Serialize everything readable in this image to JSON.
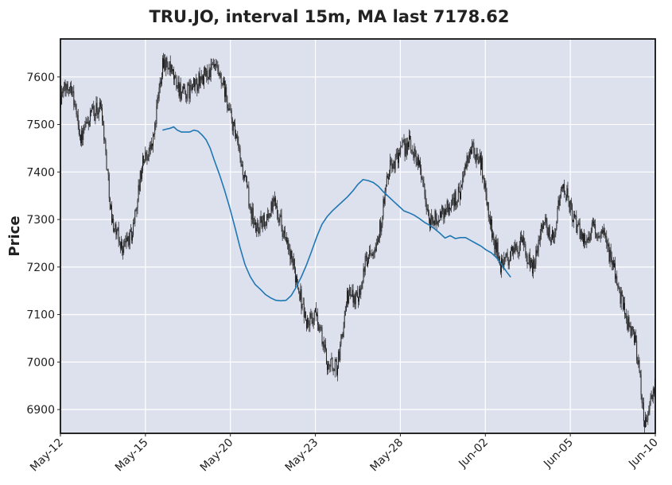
{
  "chart_data": {
    "type": "candlestick",
    "title": "TRU.JO, interval 15m, MA last 7178.62",
    "xlabel": "",
    "ylabel": "Price",
    "ylim": [
      6850,
      7680
    ],
    "grid": true,
    "y_ticks": [
      6900,
      7000,
      7100,
      7200,
      7300,
      7400,
      7500,
      7600
    ],
    "x_tick_labels": [
      "May-12",
      "May-15",
      "May-20",
      "May-23",
      "May-28",
      "Jun-02",
      "Jun-05",
      "Jun-10"
    ],
    "price_path": [
      [
        0,
        7560
      ],
      [
        1,
        7590
      ],
      [
        2,
        7470
      ],
      [
        3,
        7520
      ],
      [
        4,
        7540
      ],
      [
        5,
        7300
      ],
      [
        6,
        7240
      ],
      [
        7,
        7270
      ],
      [
        8,
        7420
      ],
      [
        9,
        7460
      ],
      [
        10,
        7640
      ],
      [
        11,
        7600
      ],
      [
        12,
        7560
      ],
      [
        13,
        7580
      ],
      [
        14,
        7600
      ],
      [
        15,
        7620
      ],
      [
        16,
        7570
      ],
      [
        17,
        7480
      ],
      [
        18,
        7380
      ],
      [
        19,
        7280
      ],
      [
        20,
        7300
      ],
      [
        21,
        7340
      ],
      [
        22,
        7250
      ],
      [
        23,
        7180
      ],
      [
        24,
        7080
      ],
      [
        25,
        7100
      ],
      [
        26,
        7000
      ],
      [
        27,
        6990
      ],
      [
        28,
        7140
      ],
      [
        29,
        7140
      ],
      [
        30,
        7230
      ],
      [
        31,
        7260
      ],
      [
        32,
        7400
      ],
      [
        33,
        7440
      ],
      [
        34,
        7460
      ],
      [
        35,
        7420
      ],
      [
        36,
        7290
      ],
      [
        37,
        7310
      ],
      [
        38,
        7330
      ],
      [
        39,
        7360
      ],
      [
        40,
        7450
      ],
      [
        41,
        7420
      ],
      [
        42,
        7280
      ],
      [
        43,
        7200
      ],
      [
        44,
        7230
      ],
      [
        45,
        7250
      ],
      [
        46,
        7190
      ],
      [
        47,
        7300
      ],
      [
        48,
        7260
      ],
      [
        49,
        7380
      ],
      [
        50,
        7300
      ],
      [
        51,
        7260
      ],
      [
        52,
        7280
      ],
      [
        53,
        7260
      ],
      [
        54,
        7200
      ],
      [
        55,
        7100
      ],
      [
        56,
        7050
      ],
      [
        57,
        6870
      ],
      [
        58,
        6950
      ]
    ],
    "ma_series": {
      "values": [
        [
          9.96,
          7488
        ],
        [
          10.3,
          7490
        ],
        [
          10.7,
          7492
        ],
        [
          11.04,
          7495
        ],
        [
          11.4,
          7488
        ],
        [
          11.8,
          7484
        ],
        [
          12.2,
          7484
        ],
        [
          12.6,
          7484
        ],
        [
          13.0,
          7488
        ],
        [
          13.4,
          7486
        ],
        [
          13.8,
          7478
        ],
        [
          14.2,
          7468
        ],
        [
          14.6,
          7450
        ],
        [
          15.0,
          7425
        ],
        [
          15.5,
          7395
        ],
        [
          16.0,
          7362
        ],
        [
          16.5,
          7325
        ],
        [
          17.0,
          7285
        ],
        [
          17.5,
          7242
        ],
        [
          18.0,
          7205
        ],
        [
          18.5,
          7180
        ],
        [
          19.0,
          7163
        ],
        [
          19.5,
          7153
        ],
        [
          20.0,
          7142
        ],
        [
          20.5,
          7135
        ],
        [
          21.0,
          7130
        ],
        [
          21.5,
          7129
        ],
        [
          22.0,
          7130
        ],
        [
          22.5,
          7140
        ],
        [
          23.0,
          7158
        ],
        [
          23.5,
          7180
        ],
        [
          24.0,
          7205
        ],
        [
          24.5,
          7234
        ],
        [
          25.0,
          7264
        ],
        [
          25.5,
          7290
        ],
        [
          26.0,
          7306
        ],
        [
          26.5,
          7318
        ],
        [
          27.0,
          7328
        ],
        [
          27.5,
          7338
        ],
        [
          28.0,
          7348
        ],
        [
          28.5,
          7360
        ],
        [
          29.0,
          7374
        ],
        [
          29.5,
          7384
        ],
        [
          30.0,
          7382
        ],
        [
          30.5,
          7378
        ],
        [
          31.0,
          7370
        ],
        [
          31.5,
          7358
        ],
        [
          32.0,
          7348
        ],
        [
          32.5,
          7338
        ],
        [
          33.0,
          7328
        ],
        [
          33.5,
          7318
        ],
        [
          34.0,
          7314
        ],
        [
          34.5,
          7309
        ],
        [
          35.0,
          7302
        ],
        [
          35.5,
          7294
        ],
        [
          36.0,
          7288
        ],
        [
          36.5,
          7280
        ],
        [
          37.0,
          7271
        ],
        [
          37.5,
          7261
        ],
        [
          38.0,
          7266
        ],
        [
          38.5,
          7260
        ],
        [
          39.0,
          7262
        ],
        [
          39.5,
          7262
        ],
        [
          40.0,
          7256
        ],
        [
          40.5,
          7250
        ],
        [
          41.0,
          7244
        ],
        [
          41.5,
          7236
        ],
        [
          42.0,
          7230
        ],
        [
          42.5,
          7220
        ],
        [
          43.0,
          7206
        ],
        [
          43.5,
          7190
        ],
        [
          43.9,
          7178.62
        ]
      ]
    },
    "x_range": [
      0,
      58
    ],
    "colors": {
      "background": "#dde1ed",
      "grid": "#ffffff",
      "candle": "#1a1a1a",
      "ma": "#1f77b4"
    }
  }
}
